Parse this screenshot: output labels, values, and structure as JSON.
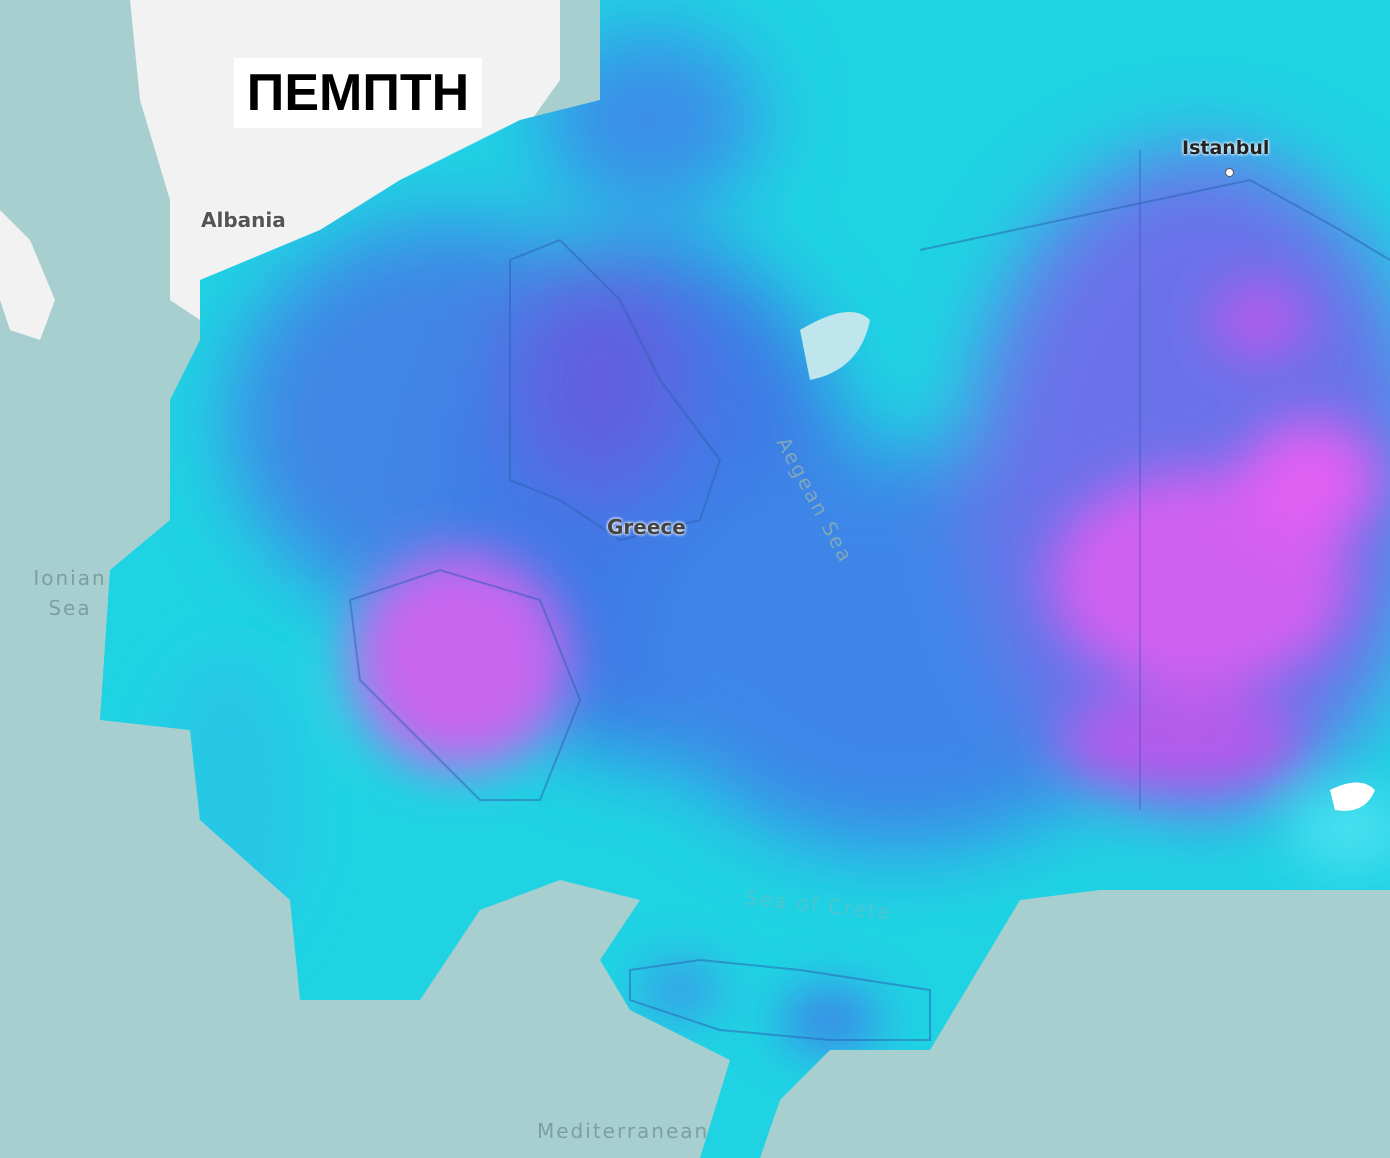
{
  "title": "ΠΕΜΠΤΗ",
  "labels": {
    "albania": "Albania",
    "istanbul": "Istanbul",
    "greece": "Greece",
    "aegean": "Aegean Sea",
    "ionian": "Ionian Sea",
    "crete_sea": "Sea of Crete",
    "mediterranean": "Mediterranean"
  },
  "colors": {
    "sea": "#a8cfd0",
    "land": "#f2f2f2",
    "cyan": "#19d9e6",
    "blue": "#3a7ee8",
    "violet": "#7a5ae6",
    "magenta": "#d85ef0"
  }
}
